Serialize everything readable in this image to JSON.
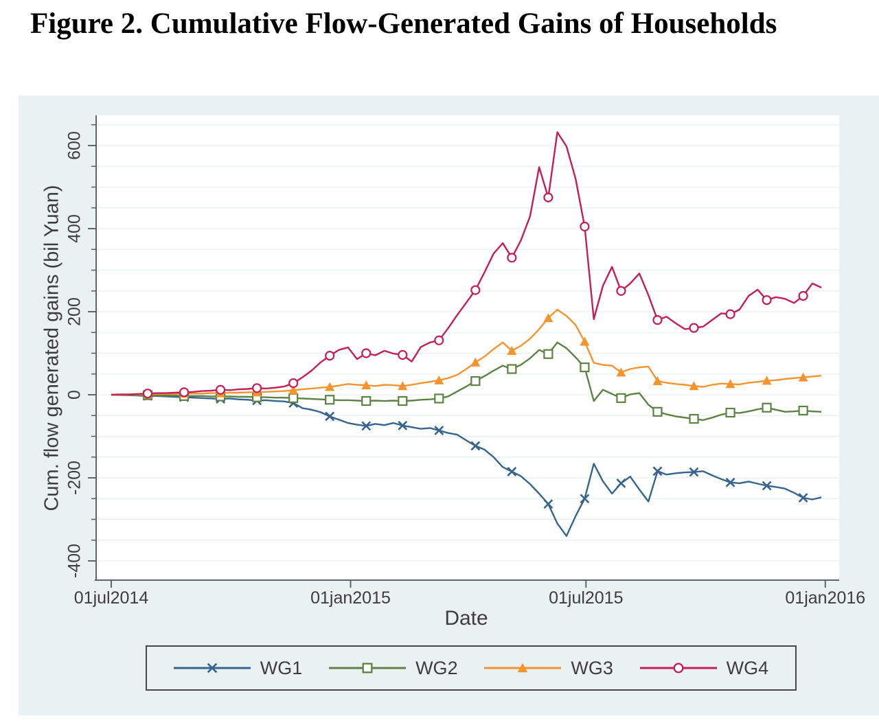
{
  "page": {
    "title": "Figure 2. Cumulative Flow-Generated Gains of Households"
  },
  "style": {
    "figure_bg": "#eaf1f3",
    "plot_bg": "#ffffff",
    "grid_color": "#e9eff1",
    "axis_color": "#5d6566",
    "text_color": "#3d3d3d",
    "legend_border": "#474747"
  },
  "chart_data": {
    "type": "line",
    "title": "Figure 2. Cumulative Flow-Generated Gains of Households",
    "xlabel": "Date",
    "ylabel": "Cum. flow generated gains (bil Yuan)",
    "x_start_date": "01jul2014",
    "x_step_days": 7,
    "x_ticks": [
      {
        "day": 0,
        "label": "01jul2014"
      },
      {
        "day": 184,
        "label": "01jan2015"
      },
      {
        "day": 365,
        "label": "01jul2015"
      },
      {
        "day": 549,
        "label": "01jan2016"
      }
    ],
    "y_ticks": [
      600,
      400,
      200,
      0,
      -200,
      -400
    ],
    "y_minor_tick_step": 50,
    "grid_step": 50,
    "ylim_visible": [
      -446,
      669
    ],
    "xlim_days": [
      -12,
      560
    ],
    "grid": "horizontal only, light",
    "legend_position": "bottom",
    "marker_every_n_points": 4,
    "units": "bil Yuan, weekly cumulative values from 01jul2014",
    "series": [
      {
        "name": "WG1",
        "color": "#35648d",
        "marker": "x",
        "values": [
          0,
          -1,
          -1,
          -2,
          -3,
          -3,
          -4,
          -5,
          -6,
          -7,
          -8,
          -9,
          -10,
          -9,
          -11,
          -12,
          -14,
          -13,
          -15,
          -16,
          -20,
          -32,
          -36,
          -42,
          -52,
          -60,
          -68,
          -72,
          -75,
          -70,
          -73,
          -68,
          -74,
          -78,
          -82,
          -80,
          -86,
          -92,
          -96,
          -110,
          -123,
          -132,
          -150,
          -174,
          -185,
          -196,
          -215,
          -238,
          -263,
          -310,
          -340,
          -292,
          -250,
          -166,
          -208,
          -238,
          -213,
          -197,
          -228,
          -257,
          -184,
          -192,
          -189,
          -187,
          -186,
          -184,
          -194,
          -203,
          -211,
          -213,
          -209,
          -214,
          -219,
          -222,
          -226,
          -236,
          -248,
          -252,
          -247
        ]
      },
      {
        "name": "WG2",
        "color": "#5d8243",
        "marker": "square-hollow",
        "values": [
          0,
          0,
          -1,
          -1,
          -1,
          -2,
          -2,
          -2,
          -3,
          -3,
          -3,
          -4,
          -4,
          -4,
          -5,
          -5,
          -6,
          -6,
          -7,
          -7,
          -8,
          -9,
          -10,
          -11,
          -12,
          -13,
          -13,
          -14,
          -15,
          -14,
          -15,
          -14,
          -15,
          -14,
          -12,
          -11,
          -9,
          -4,
          8,
          20,
          33,
          45,
          58,
          70,
          62,
          72,
          88,
          108,
          98,
          126,
          112,
          90,
          66,
          -15,
          12,
          2,
          -8,
          1,
          4,
          -24,
          -41,
          -47,
          -52,
          -55,
          -58,
          -61,
          -55,
          -48,
          -43,
          -44,
          -40,
          -35,
          -31,
          -36,
          -41,
          -40,
          -38,
          -40,
          -41
        ]
      },
      {
        "name": "WG3",
        "color": "#f3942f",
        "marker": "triangle-filled",
        "values": [
          0,
          0,
          1,
          1,
          1,
          2,
          2,
          2,
          3,
          3,
          3,
          4,
          4,
          5,
          5,
          6,
          6,
          7,
          8,
          9,
          11,
          13,
          15,
          17,
          19,
          22,
          26,
          24,
          23,
          21,
          24,
          23,
          21,
          24,
          28,
          31,
          35,
          40,
          48,
          62,
          78,
          92,
          110,
          126,
          106,
          118,
          135,
          158,
          185,
          205,
          190,
          168,
          128,
          77,
          72,
          70,
          54,
          62,
          66,
          68,
          33,
          29,
          26,
          24,
          21,
          19,
          24,
          27,
          26,
          25,
          29,
          31,
          34,
          35,
          38,
          40,
          42,
          44,
          46
        ]
      },
      {
        "name": "WG4",
        "color": "#c31e55",
        "marker": "circle-hollow",
        "values": [
          0,
          1,
          1,
          2,
          3,
          4,
          4,
          5,
          6,
          7,
          9,
          10,
          12,
          11,
          13,
          14,
          16,
          15,
          17,
          20,
          28,
          42,
          58,
          78,
          94,
          108,
          114,
          86,
          100,
          95,
          106,
          99,
          96,
          80,
          115,
          126,
          131,
          160,
          192,
          222,
          252,
          295,
          340,
          365,
          330,
          372,
          430,
          548,
          475,
          632,
          598,
          520,
          405,
          182,
          262,
          308,
          250,
          268,
          292,
          240,
          180,
          188,
          172,
          158,
          161,
          164,
          180,
          196,
          194,
          205,
          238,
          253,
          228,
          235,
          231,
          221,
          238,
          268,
          258
        ]
      }
    ]
  }
}
